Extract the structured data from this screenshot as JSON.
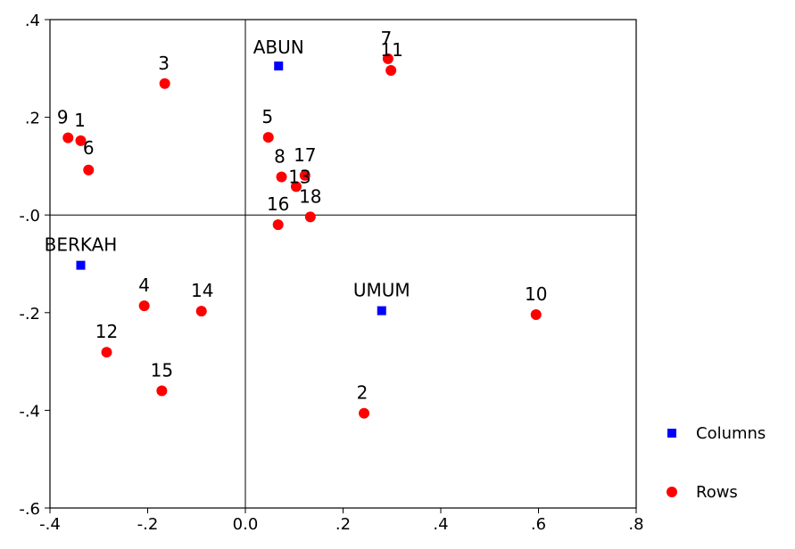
{
  "chart_data": {
    "type": "scatter",
    "title": "",
    "xlabel": "",
    "ylabel": "",
    "xlim": [
      -0.4,
      0.8
    ],
    "ylim": [
      -0.6,
      0.4
    ],
    "x_ticks": [
      {
        "value": -0.4,
        "label": "-.4"
      },
      {
        "value": -0.2,
        "label": "-.2"
      },
      {
        "value": 0.0,
        "label": "0.0"
      },
      {
        "value": 0.2,
        "label": ".2"
      },
      {
        "value": 0.4,
        "label": ".4"
      },
      {
        "value": 0.6,
        "label": ".6"
      },
      {
        "value": 0.8,
        "label": ".8"
      }
    ],
    "y_ticks": [
      {
        "value": 0.4,
        "label": ".4"
      },
      {
        "value": 0.2,
        "label": ".2"
      },
      {
        "value": 0.0,
        "label": "-.0"
      },
      {
        "value": -0.2,
        "label": "-.2"
      },
      {
        "value": -0.4,
        "label": "-.4"
      },
      {
        "value": -0.6,
        "label": "-.6"
      }
    ],
    "reference_lines": {
      "x": 0.0,
      "y": 0.0
    },
    "grid": false,
    "legend_position": "right",
    "series": [
      {
        "name": "Columns",
        "marker": "square",
        "color": "#0000ff",
        "points": [
          {
            "label": "ABUN",
            "x": 0.068,
            "y": 0.305
          },
          {
            "label": "BERKAH",
            "x": -0.337,
            "y": -0.103
          },
          {
            "label": "UMUM",
            "x": 0.279,
            "y": -0.196
          }
        ]
      },
      {
        "name": "Rows",
        "marker": "circle",
        "color": "#ff0000",
        "points": [
          {
            "label": "1",
            "x": -0.337,
            "y": 0.152
          },
          {
            "label": "2",
            "x": 0.243,
            "y": -0.406
          },
          {
            "label": "3",
            "x": -0.165,
            "y": 0.269
          },
          {
            "label": "4",
            "x": -0.207,
            "y": -0.186
          },
          {
            "label": "5",
            "x": 0.047,
            "y": 0.159
          },
          {
            "label": "6",
            "x": -0.321,
            "y": 0.092
          },
          {
            "label": "7",
            "x": 0.292,
            "y": 0.32
          },
          {
            "label": "8",
            "x": 0.074,
            "y": 0.078
          },
          {
            "label": "9",
            "x": -0.363,
            "y": 0.158
          },
          {
            "label": "10",
            "x": 0.595,
            "y": -0.204
          },
          {
            "label": "11",
            "x": 0.298,
            "y": 0.296
          },
          {
            "label": "12",
            "x": -0.284,
            "y": -0.281
          },
          {
            "label": "13",
            "x": 0.104,
            "y": 0.058
          },
          {
            "label": "14",
            "x": -0.09,
            "y": -0.197
          },
          {
            "label": "15",
            "x": -0.171,
            "y": -0.36
          },
          {
            "label": "16",
            "x": 0.067,
            "y": -0.02
          },
          {
            "label": "17",
            "x": 0.122,
            "y": 0.081
          },
          {
            "label": "18",
            "x": 0.133,
            "y": -0.004
          }
        ]
      }
    ]
  }
}
